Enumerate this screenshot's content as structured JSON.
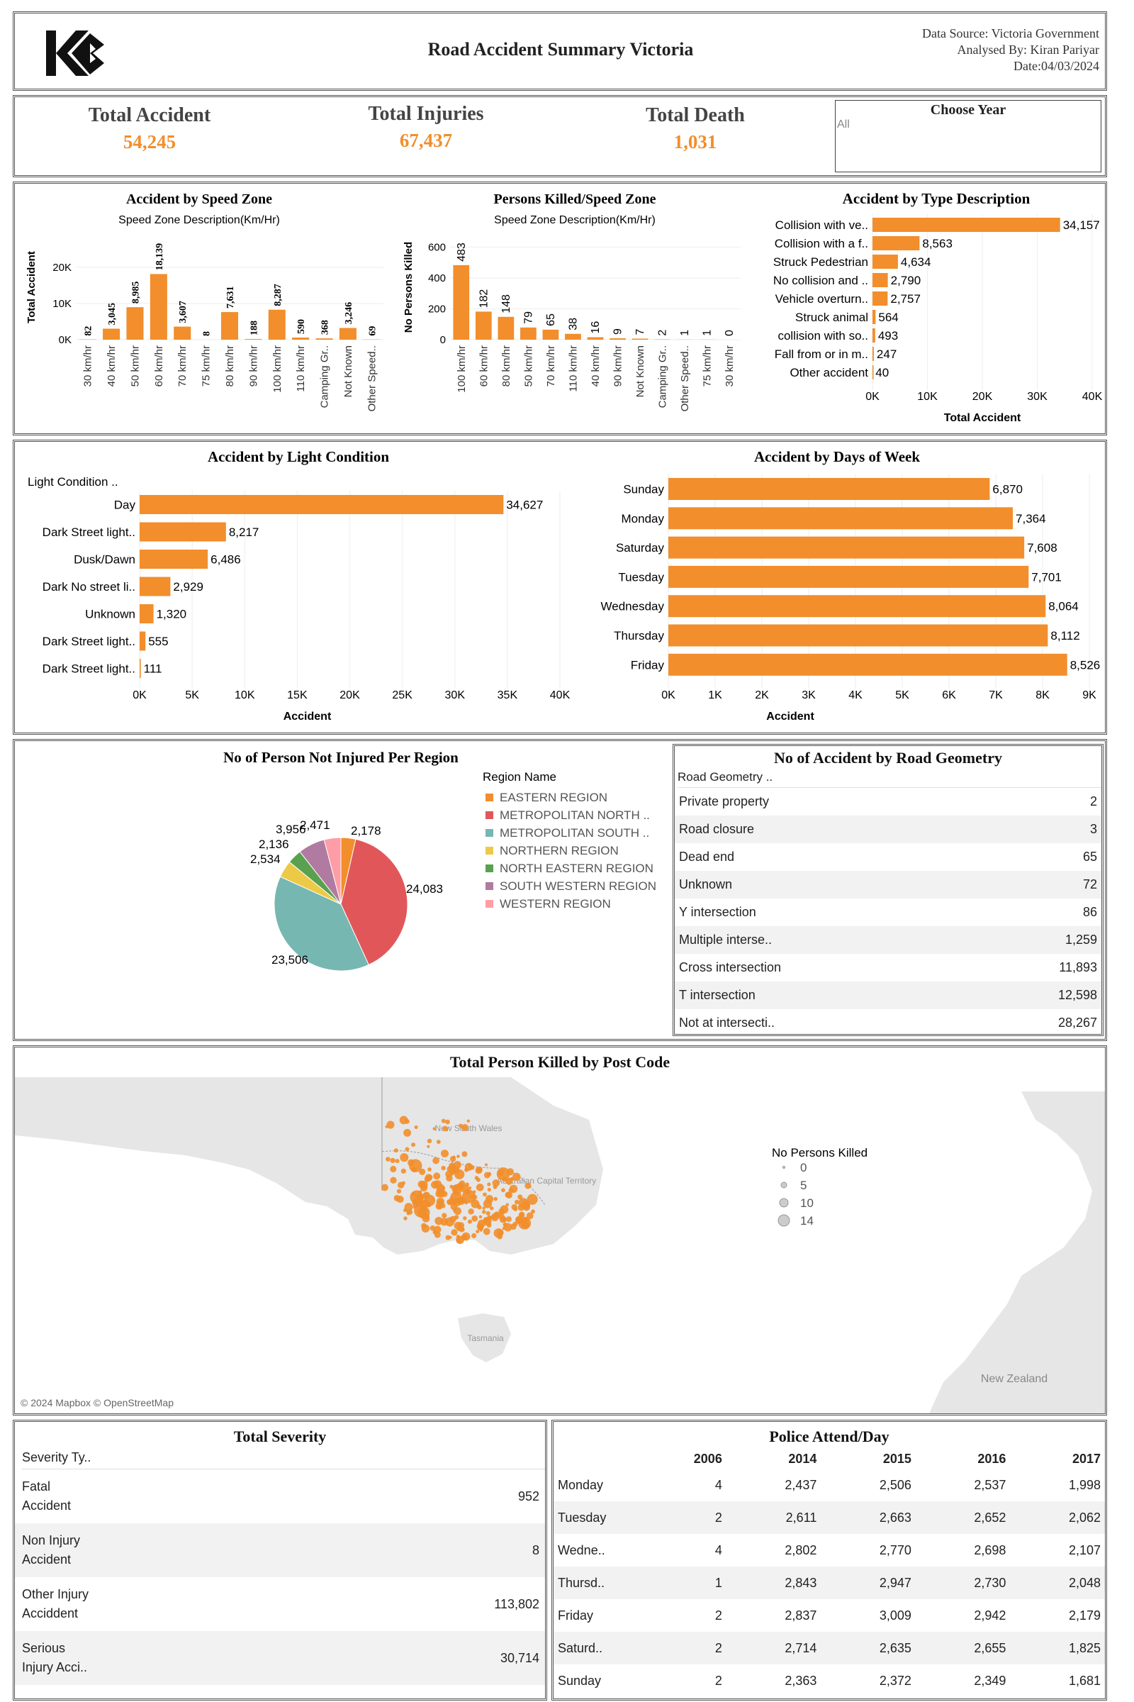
{
  "header": {
    "title": "Road Accident Summary Victoria",
    "source": "Data Source: Victoria Government",
    "analyst": "Analysed By: Kiran Pariyar",
    "date": "Date:04/03/2024"
  },
  "kpis": [
    {
      "label": "Total Accident",
      "value": "54,245"
    },
    {
      "label": "Total Injuries",
      "value": "67,437"
    },
    {
      "label": "Total Death",
      "value": "1,031"
    }
  ],
  "filter": {
    "label": "Choose Year",
    "value": "All"
  },
  "colors": {
    "accent": "#f28e2b",
    "border": "#555555"
  },
  "chart_data": [
    {
      "id": "speed_zone_accidents",
      "type": "bar",
      "title": "Accident by Speed Zone",
      "xlabel": "Speed Zone Description(Km/Hr)",
      "ylabel": "Total Accident",
      "ylim": [
        0,
        29000
      ],
      "yticks": [
        "0K",
        "10K",
        "20K"
      ],
      "categories": [
        "30 km/hr",
        "40 km/hr",
        "50 km/hr",
        "60 km/hr",
        "70 km/hr",
        "75 km/hr",
        "80 km/hr",
        "90 km/hr",
        "100 km/hr",
        "110 km/hr",
        "Camping Gr..",
        "Not Known",
        "Other Speed.."
      ],
      "values": [
        82,
        3045,
        8985,
        18139,
        3607,
        8,
        7631,
        188,
        8287,
        590,
        368,
        3246,
        69
      ],
      "labels": [
        "82",
        "3,045",
        "8,985",
        "18,139",
        "3,607",
        "8",
        "7,631",
        "188",
        "8,287",
        "590",
        "368",
        "3,246",
        "69"
      ]
    },
    {
      "id": "killed_speed_zone",
      "type": "bar",
      "title": "Persons Killed/Speed Zone",
      "xlabel": "Speed Zone Description(Km/Hr)",
      "ylabel": "No Persons Killed",
      "ylim": [
        0,
        680
      ],
      "yticks": [
        "0",
        "200",
        "400",
        "600"
      ],
      "categories": [
        "100 km/hr",
        "60 km/hr",
        "80 km/hr",
        "50 km/hr",
        "70 km/hr",
        "110 km/hr",
        "40 km/hr",
        "90 km/hr",
        "Not Known",
        "Camping Gr..",
        "Other Speed..",
        "75 km/hr",
        "30 km/hr"
      ],
      "values": [
        483,
        182,
        148,
        79,
        65,
        38,
        16,
        9,
        7,
        2,
        1,
        1,
        0
      ],
      "labels": [
        "483",
        "182",
        "148",
        "79",
        "65",
        "38",
        "16",
        "9",
        "7",
        "2",
        "1",
        "1",
        "0"
      ]
    },
    {
      "id": "type_description",
      "type": "bar",
      "orientation": "horizontal",
      "title": "Accident by Type Description",
      "xlabel": "Total Accident",
      "xlim": [
        0,
        40000
      ],
      "xticks": [
        "0K",
        "10K",
        "20K",
        "30K",
        "40K"
      ],
      "categories": [
        "Collision with ve..",
        "Collision with a f..",
        "Struck Pedestrian",
        "No collision and ..",
        "Vehicle overturn..",
        "Struck animal",
        "collision with so..",
        "Fall from or in m..",
        "Other accident"
      ],
      "values": [
        34157,
        8563,
        4634,
        2790,
        2757,
        564,
        493,
        247,
        40
      ],
      "labels": [
        "34,157",
        "8,563",
        "4,634",
        "2,790",
        "2,757",
        "564",
        "493",
        "247",
        "40"
      ]
    },
    {
      "id": "light_condition",
      "type": "bar",
      "orientation": "horizontal",
      "title": "Accident by Light Condition",
      "header": "Light Condition ..",
      "xlabel": "Accident",
      "xlim": [
        0,
        40000
      ],
      "xticks": [
        "0K",
        "5K",
        "10K",
        "15K",
        "20K",
        "25K",
        "30K",
        "35K",
        "40K"
      ],
      "categories": [
        "Day",
        "Dark Street light..",
        "Dusk/Dawn",
        "Dark No street li..",
        "Unknown",
        "Dark Street light..",
        "Dark Street light.."
      ],
      "values": [
        34627,
        8217,
        6486,
        2929,
        1320,
        555,
        111
      ],
      "labels": [
        "34,627",
        "8,217",
        "6,486",
        "2,929",
        "1,320",
        "555",
        "111"
      ]
    },
    {
      "id": "days_of_week",
      "type": "bar",
      "orientation": "horizontal",
      "title": "Accident by Days of Week",
      "xlabel": "Accident",
      "xlim": [
        0,
        9000
      ],
      "xticks": [
        "0K",
        "1K",
        "2K",
        "3K",
        "4K",
        "5K",
        "6K",
        "7K",
        "8K",
        "9K"
      ],
      "categories": [
        "Sunday",
        "Monday",
        "Saturday",
        "Tuesday",
        "Wednesday",
        "Thursday",
        "Friday"
      ],
      "values": [
        6870,
        7364,
        7608,
        7701,
        8064,
        8112,
        8526
      ],
      "labels": [
        "6,870",
        "7,364",
        "7,608",
        "7,701",
        "8,064",
        "8,112",
        "8,526"
      ]
    },
    {
      "id": "region_pie",
      "type": "pie",
      "title": "No of Person Not Injured Per Region",
      "legend_title": "Region Name",
      "legend_position": "right",
      "categories": [
        "EASTERN REGION",
        "METROPOLITAN NORTH ..",
        "METROPOLITAN SOUTH ..",
        "NORTHERN REGION",
        "NORTH EASTERN REGION",
        "SOUTH WESTERN REGION",
        "WESTERN REGION"
      ],
      "values": [
        2178,
        24083,
        23506,
        2534,
        2136,
        3956,
        2471
      ],
      "labels": [
        "2,178",
        "24,083",
        "23,506",
        "2,534",
        "2,136",
        "3,956",
        "2,471"
      ],
      "colors": [
        "#f28e2b",
        "#e15759",
        "#76b7b2",
        "#edc948",
        "#59a14f",
        "#b07aa1",
        "#ff9da7"
      ]
    },
    {
      "id": "road_geometry",
      "type": "table",
      "title": "No of Accident by Road Geometry",
      "header": "Road Geometry ..",
      "rows": [
        {
          "name": "Private property",
          "value": "2"
        },
        {
          "name": "Road closure",
          "value": "3"
        },
        {
          "name": "Dead end",
          "value": "65"
        },
        {
          "name": "Unknown",
          "value": "72"
        },
        {
          "name": "Y intersection",
          "value": "86"
        },
        {
          "name": "Multiple interse..",
          "value": "1,259"
        },
        {
          "name": "Cross intersection",
          "value": "11,893"
        },
        {
          "name": "T intersection",
          "value": "12,598"
        },
        {
          "name": "Not at intersecti..",
          "value": "28,267"
        }
      ]
    },
    {
      "id": "severity",
      "type": "table",
      "title": "Total Severity",
      "header": "Severity Ty..",
      "rows": [
        {
          "line1": "Fatal",
          "line2": "Accident",
          "value": "952"
        },
        {
          "line1": "Non Injury",
          "line2": "Accident",
          "value": "8"
        },
        {
          "line1": "Other Injury",
          "line2": "Acciddent",
          "value": "113,802"
        },
        {
          "line1": "Serious",
          "line2": "Injury Acci..",
          "value": "30,714"
        }
      ]
    },
    {
      "id": "police_attend",
      "type": "table",
      "title": "Police Attend/Day",
      "columns": [
        "2006",
        "2014",
        "2015",
        "2016",
        "2017"
      ],
      "rows": [
        {
          "day": "Monday",
          "values": [
            "4",
            "2,437",
            "2,506",
            "2,537",
            "1,998"
          ]
        },
        {
          "day": "Tuesday",
          "values": [
            "2",
            "2,611",
            "2,663",
            "2,652",
            "2,062"
          ]
        },
        {
          "day": "Wedne..",
          "values": [
            "4",
            "2,802",
            "2,770",
            "2,698",
            "2,107"
          ]
        },
        {
          "day": "Thursd..",
          "values": [
            "1",
            "2,843",
            "2,947",
            "2,730",
            "2,048"
          ]
        },
        {
          "day": "Friday",
          "values": [
            "2",
            "2,837",
            "3,009",
            "2,942",
            "2,179"
          ]
        },
        {
          "day": "Saturd..",
          "values": [
            "2",
            "2,714",
            "2,635",
            "2,655",
            "1,825"
          ]
        },
        {
          "day": "Sunday",
          "values": [
            "2",
            "2,363",
            "2,372",
            "2,349",
            "1,681"
          ]
        }
      ]
    }
  ],
  "map": {
    "title": "Total Person Killed by Post Code",
    "legend_title": "No Persons Killed",
    "legend_values": [
      "0",
      "5",
      "10",
      "14"
    ],
    "place_labels": [
      "New South Wales",
      "Australian Capital Territory",
      "Tasmania",
      "New Zealand"
    ],
    "attribution": "© 2024 Mapbox © OpenStreetMap"
  }
}
